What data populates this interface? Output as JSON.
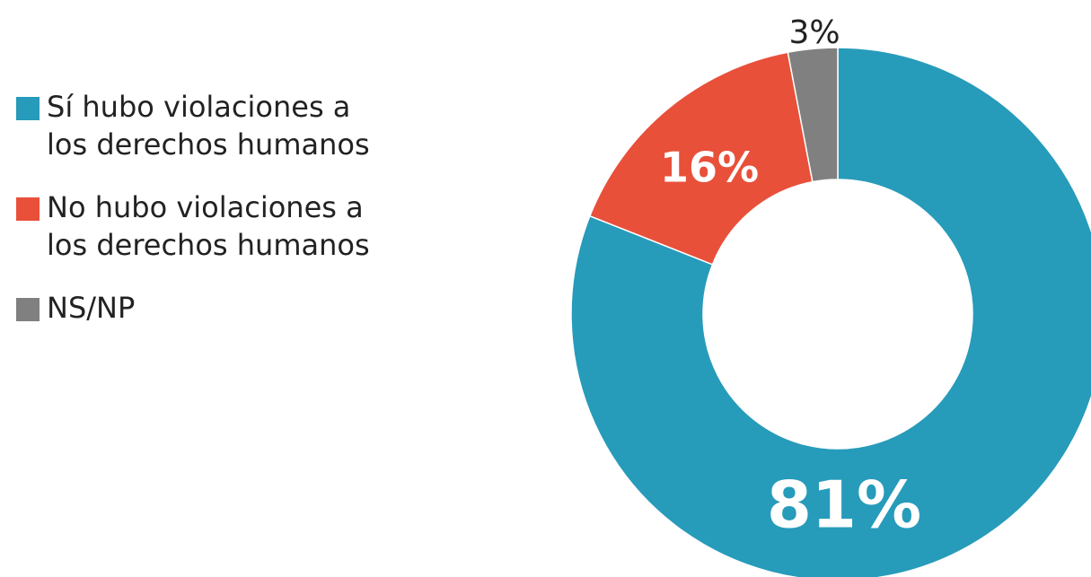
{
  "chart_data": {
    "type": "donut",
    "categories": [
      "Sí hubo violaciones a los derechos humanos",
      "No hubo violaciones a los derechos humanos",
      "NS/NP"
    ],
    "values": [
      81,
      16,
      3
    ],
    "value_labels": [
      "81%",
      "16%",
      "3%"
    ],
    "colors": [
      "#279bba",
      "#e8503a",
      "#808080"
    ],
    "legend": "left"
  }
}
